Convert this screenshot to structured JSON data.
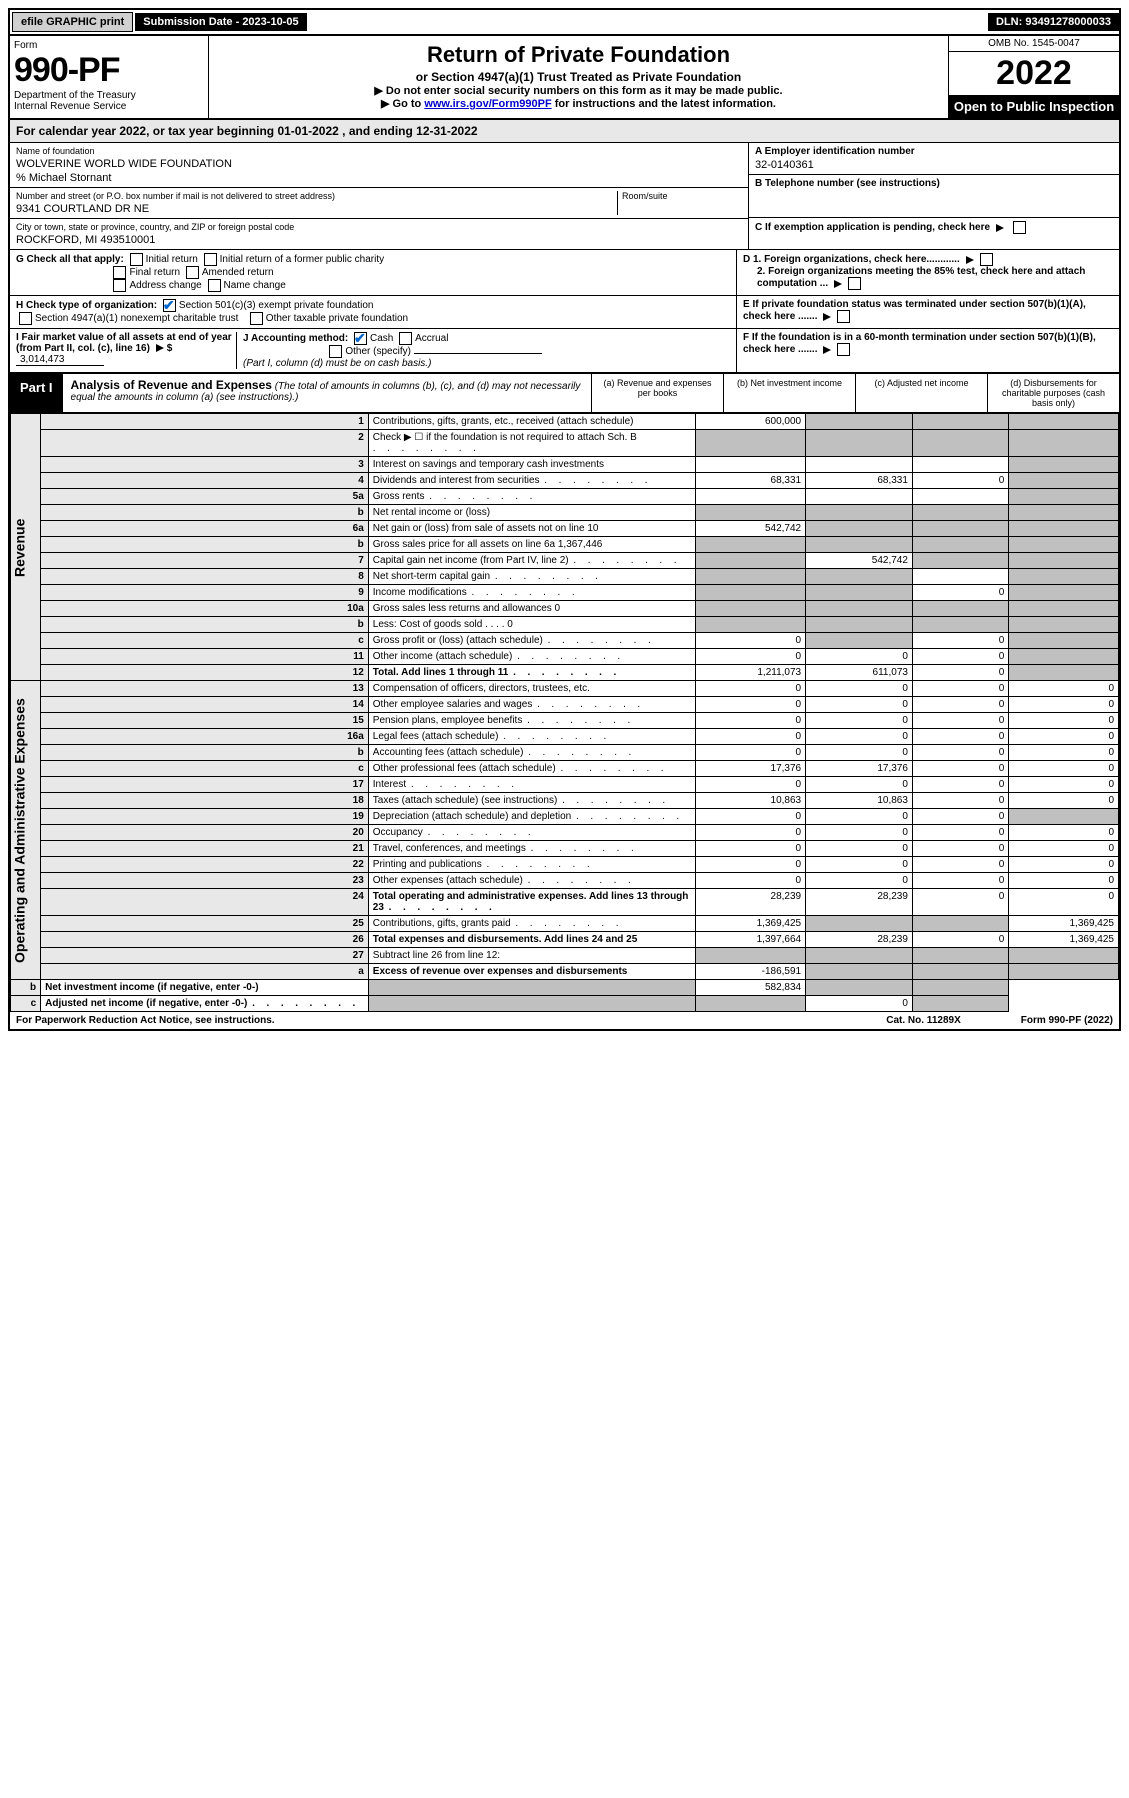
{
  "topbar": {
    "efile": "efile GRAPHIC print",
    "submission_label": "Submission Date - 2023-10-05",
    "dln": "DLN: 93491278000033"
  },
  "header": {
    "form_word": "Form",
    "form_number": "990-PF",
    "dept": "Department of the Treasury",
    "irs": "Internal Revenue Service",
    "title": "Return of Private Foundation",
    "subtitle1": "or Section 4947(a)(1) Trust Treated as Private Foundation",
    "subtitle2a": "▶ Do not enter social security numbers on this form as it may be made public.",
    "subtitle2b": "▶ Go to ",
    "link": "www.irs.gov/Form990PF",
    "subtitle2c": " for instructions and the latest information.",
    "omb": "OMB No. 1545-0047",
    "year": "2022",
    "open_public": "Open to Public Inspection"
  },
  "calendar": "For calendar year 2022, or tax year beginning 01-01-2022                           , and ending 12-31-2022",
  "info": {
    "name_label": "Name of foundation",
    "name": "WOLVERINE WORLD WIDE FOUNDATION",
    "care_of": "% Michael Stornant",
    "addr_label": "Number and street (or P.O. box number if mail is not delivered to street address)",
    "addr": "9341 COURTLAND DR NE",
    "room_label": "Room/suite",
    "city_label": "City or town, state or province, country, and ZIP or foreign postal code",
    "city": "ROCKFORD, MI  493510001",
    "a_label": "A Employer identification number",
    "a_value": "32-0140361",
    "b_label": "B Telephone number (see instructions)",
    "c_label": "C If exemption application is pending, check here",
    "d1": "D 1. Foreign organizations, check here............",
    "d2": "2. Foreign organizations meeting the 85% test, check here and attach computation ...",
    "e": "E  If private foundation status was terminated under section 507(b)(1)(A), check here .......",
    "f": "F  If the foundation is in a 60-month termination under section 507(b)(1)(B), check here .......",
    "g_label": "G Check all that apply:",
    "g_opts": [
      "Initial return",
      "Initial return of a former public charity",
      "Final return",
      "Amended return",
      "Address change",
      "Name change"
    ],
    "h_label": "H Check type of organization:",
    "h_opts": [
      "Section 501(c)(3) exempt private foundation",
      "Section 4947(a)(1) nonexempt charitable trust",
      "Other taxable private foundation"
    ],
    "i_label": "I Fair market value of all assets at end of year (from Part II, col. (c), line 16)",
    "i_value": "3,014,473",
    "j_label": "J Accounting method:",
    "j_cash": "Cash",
    "j_accrual": "Accrual",
    "j_other": "Other (specify)",
    "j_note": "(Part I, column (d) must be on cash basis.)"
  },
  "part1": {
    "label": "Part I",
    "title": "Analysis of Revenue and Expenses",
    "note": "(The total of amounts in columns (b), (c), and (d) may not necessarily equal the amounts in column (a) (see instructions).)",
    "col_a": "(a) Revenue and expenses per books",
    "col_b": "(b) Net investment income",
    "col_c": "(c) Adjusted net income",
    "col_d": "(d) Disbursements for charitable purposes (cash basis only)"
  },
  "sides": {
    "revenue": "Revenue",
    "expenses": "Operating and Administrative Expenses"
  },
  "rows": [
    {
      "n": "1",
      "d": "Contributions, gifts, grants, etc., received (attach schedule)",
      "a": "600,000",
      "b": "",
      "c": "",
      "dd": "",
      "sb": true,
      "sc": true,
      "sd": true
    },
    {
      "n": "2",
      "d": "Check ▶ ☐ if the foundation is not required to attach Sch. B",
      "a": "",
      "b": "",
      "c": "",
      "dd": "",
      "sa": true,
      "sb": true,
      "sc": true,
      "sd": true,
      "dots": true
    },
    {
      "n": "3",
      "d": "Interest on savings and temporary cash investments",
      "a": "",
      "b": "",
      "c": "",
      "dd": "",
      "sd": true
    },
    {
      "n": "4",
      "d": "Dividends and interest from securities",
      "a": "68,331",
      "b": "68,331",
      "c": "0",
      "dd": "",
      "sd": true,
      "dots": true
    },
    {
      "n": "5a",
      "d": "Gross rents",
      "a": "",
      "b": "",
      "c": "",
      "dd": "",
      "sd": true,
      "dots": true
    },
    {
      "n": "b",
      "d": "Net rental income or (loss)",
      "a": "",
      "b": "",
      "c": "",
      "dd": "",
      "sa": true,
      "sb": true,
      "sc": true,
      "sd": true
    },
    {
      "n": "6a",
      "d": "Net gain or (loss) from sale of assets not on line 10",
      "a": "542,742",
      "b": "",
      "c": "",
      "dd": "",
      "sb": true,
      "sc": true,
      "sd": true
    },
    {
      "n": "b",
      "d": "Gross sales price for all assets on line 6a         1,367,446",
      "a": "",
      "b": "",
      "c": "",
      "dd": "",
      "sa": true,
      "sb": true,
      "sc": true,
      "sd": true
    },
    {
      "n": "7",
      "d": "Capital gain net income (from Part IV, line 2)",
      "a": "",
      "b": "542,742",
      "c": "",
      "dd": "",
      "sa": true,
      "sc": true,
      "sd": true,
      "dots": true
    },
    {
      "n": "8",
      "d": "Net short-term capital gain",
      "a": "",
      "b": "",
      "c": "",
      "dd": "",
      "sa": true,
      "sb": true,
      "sd": true,
      "dots": true
    },
    {
      "n": "9",
      "d": "Income modifications",
      "a": "",
      "b": "",
      "c": "0",
      "dd": "",
      "sa": true,
      "sb": true,
      "sd": true,
      "dots": true
    },
    {
      "n": "10a",
      "d": "Gross sales less returns and allowances                   0",
      "a": "",
      "b": "",
      "c": "",
      "dd": "",
      "sa": true,
      "sb": true,
      "sc": true,
      "sd": true
    },
    {
      "n": "b",
      "d": "Less: Cost of goods sold     .    .    .    .                     0",
      "a": "",
      "b": "",
      "c": "",
      "dd": "",
      "sa": true,
      "sb": true,
      "sc": true,
      "sd": true
    },
    {
      "n": "c",
      "d": "Gross profit or (loss) (attach schedule)",
      "a": "0",
      "b": "",
      "c": "0",
      "dd": "",
      "sb": true,
      "sd": true,
      "dots": true
    },
    {
      "n": "11",
      "d": "Other income (attach schedule)",
      "a": "0",
      "b": "0",
      "c": "0",
      "dd": "",
      "sd": true,
      "dots": true
    },
    {
      "n": "12",
      "d": "Total. Add lines 1 through 11",
      "a": "1,211,073",
      "b": "611,073",
      "c": "0",
      "dd": "",
      "sd": true,
      "bold": true,
      "dots": true
    },
    {
      "n": "13",
      "d": "Compensation of officers, directors, trustees, etc.",
      "a": "0",
      "b": "0",
      "c": "0",
      "dd": "0"
    },
    {
      "n": "14",
      "d": "Other employee salaries and wages",
      "a": "0",
      "b": "0",
      "c": "0",
      "dd": "0",
      "dots": true
    },
    {
      "n": "15",
      "d": "Pension plans, employee benefits",
      "a": "0",
      "b": "0",
      "c": "0",
      "dd": "0",
      "dots": true
    },
    {
      "n": "16a",
      "d": "Legal fees (attach schedule)",
      "a": "0",
      "b": "0",
      "c": "0",
      "dd": "0",
      "dots": true
    },
    {
      "n": "b",
      "d": "Accounting fees (attach schedule)",
      "a": "0",
      "b": "0",
      "c": "0",
      "dd": "0",
      "dots": true
    },
    {
      "n": "c",
      "d": "Other professional fees (attach schedule)",
      "a": "17,376",
      "b": "17,376",
      "c": "0",
      "dd": "0",
      "dots": true
    },
    {
      "n": "17",
      "d": "Interest",
      "a": "0",
      "b": "0",
      "c": "0",
      "dd": "0",
      "dots": true
    },
    {
      "n": "18",
      "d": "Taxes (attach schedule) (see instructions)",
      "a": "10,863",
      "b": "10,863",
      "c": "0",
      "dd": "0",
      "dots": true
    },
    {
      "n": "19",
      "d": "Depreciation (attach schedule) and depletion",
      "a": "0",
      "b": "0",
      "c": "0",
      "dd": "",
      "sd": true,
      "dots": true
    },
    {
      "n": "20",
      "d": "Occupancy",
      "a": "0",
      "b": "0",
      "c": "0",
      "dd": "0",
      "dots": true
    },
    {
      "n": "21",
      "d": "Travel, conferences, and meetings",
      "a": "0",
      "b": "0",
      "c": "0",
      "dd": "0",
      "dots": true
    },
    {
      "n": "22",
      "d": "Printing and publications",
      "a": "0",
      "b": "0",
      "c": "0",
      "dd": "0",
      "dots": true
    },
    {
      "n": "23",
      "d": "Other expenses (attach schedule)",
      "a": "0",
      "b": "0",
      "c": "0",
      "dd": "0",
      "dots": true
    },
    {
      "n": "24",
      "d": "Total operating and administrative expenses. Add lines 13 through 23",
      "a": "28,239",
      "b": "28,239",
      "c": "0",
      "dd": "0",
      "bold": true,
      "dots": true
    },
    {
      "n": "25",
      "d": "Contributions, gifts, grants paid",
      "a": "1,369,425",
      "b": "",
      "c": "",
      "dd": "1,369,425",
      "sb": true,
      "sc": true,
      "dots": true
    },
    {
      "n": "26",
      "d": "Total expenses and disbursements. Add lines 24 and 25",
      "a": "1,397,664",
      "b": "28,239",
      "c": "0",
      "dd": "1,369,425",
      "bold": true
    },
    {
      "n": "27",
      "d": "Subtract line 26 from line 12:",
      "a": "",
      "b": "",
      "c": "",
      "dd": "",
      "sa": true,
      "sb": true,
      "sc": true,
      "sd": true
    },
    {
      "n": "a",
      "d": "Excess of revenue over expenses and disbursements",
      "a": "-186,591",
      "b": "",
      "c": "",
      "dd": "",
      "sb": true,
      "sc": true,
      "sd": true,
      "bold": true
    },
    {
      "n": "b",
      "d": "Net investment income (if negative, enter -0-)",
      "a": "",
      "b": "582,834",
      "c": "",
      "dd": "",
      "sa": true,
      "sc": true,
      "sd": true,
      "bold": true
    },
    {
      "n": "c",
      "d": "Adjusted net income (if negative, enter -0-)",
      "a": "",
      "b": "",
      "c": "0",
      "dd": "",
      "sa": true,
      "sb": true,
      "sd": true,
      "bold": true,
      "dots": true
    }
  ],
  "footer": {
    "left": "For Paperwork Reduction Act Notice, see instructions.",
    "mid": "Cat. No. 11289X",
    "right": "Form 990-PF (2022)"
  }
}
